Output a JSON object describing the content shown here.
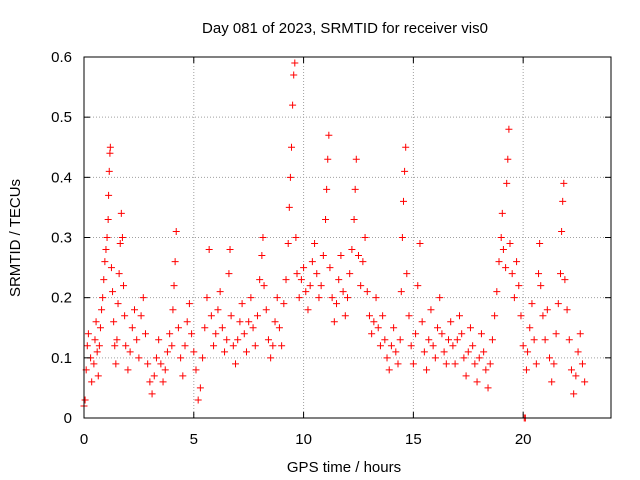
{
  "chart_data": {
    "type": "scatter",
    "title": "Day 081 of 2023, SRMTID for receiver vis0",
    "xlabel": "GPS time / hours",
    "ylabel": "SRMTID / TECUs",
    "xlim": [
      0,
      24
    ],
    "ylim": [
      0,
      0.6
    ],
    "xticks": [
      0,
      5,
      10,
      15,
      20
    ],
    "yticks": [
      0,
      0.1,
      0.2,
      0.3,
      0.4,
      0.5,
      0.6
    ],
    "xtick_labels": [
      "0",
      "5",
      "10",
      "15",
      "20"
    ],
    "ytick_labels": [
      "0",
      "0.1",
      "0.2",
      "0.3",
      "0.4",
      "0.5",
      "0.6"
    ],
    "grid": true,
    "marker": "+",
    "color": "#ff0000",
    "series": [
      {
        "name": "vis0",
        "points": [
          [
            0.0,
            0.02
          ],
          [
            0.05,
            0.03
          ],
          [
            0.1,
            0.08
          ],
          [
            0.15,
            0.12
          ],
          [
            0.2,
            0.14
          ],
          [
            0.3,
            0.1
          ],
          [
            0.35,
            0.06
          ],
          [
            0.45,
            0.09
          ],
          [
            0.5,
            0.13
          ],
          [
            0.55,
            0.16
          ],
          [
            0.6,
            0.11
          ],
          [
            0.65,
            0.07
          ],
          [
            0.7,
            0.12
          ],
          [
            0.75,
            0.15
          ],
          [
            0.8,
            0.18
          ],
          [
            0.85,
            0.2
          ],
          [
            0.9,
            0.23
          ],
          [
            0.95,
            0.26
          ],
          [
            1.0,
            0.28
          ],
          [
            1.05,
            0.3
          ],
          [
            1.1,
            0.33
          ],
          [
            1.12,
            0.37
          ],
          [
            1.15,
            0.41
          ],
          [
            1.18,
            0.44
          ],
          [
            1.2,
            0.45
          ],
          [
            1.25,
            0.25
          ],
          [
            1.3,
            0.21
          ],
          [
            1.35,
            0.16
          ],
          [
            1.4,
            0.12
          ],
          [
            1.45,
            0.09
          ],
          [
            1.5,
            0.13
          ],
          [
            1.55,
            0.19
          ],
          [
            1.6,
            0.24
          ],
          [
            1.65,
            0.29
          ],
          [
            1.7,
            0.34
          ],
          [
            1.75,
            0.3
          ],
          [
            1.8,
            0.22
          ],
          [
            1.85,
            0.17
          ],
          [
            1.9,
            0.12
          ],
          [
            2.0,
            0.08
          ],
          [
            2.1,
            0.11
          ],
          [
            2.2,
            0.15
          ],
          [
            2.3,
            0.18
          ],
          [
            2.4,
            0.13
          ],
          [
            2.5,
            0.1
          ],
          [
            2.6,
            0.17
          ],
          [
            2.7,
            0.2
          ],
          [
            2.8,
            0.14
          ],
          [
            2.9,
            0.09
          ],
          [
            3.0,
            0.06
          ],
          [
            3.1,
            0.04
          ],
          [
            3.2,
            0.07
          ],
          [
            3.3,
            0.1
          ],
          [
            3.4,
            0.13
          ],
          [
            3.5,
            0.09
          ],
          [
            3.6,
            0.06
          ],
          [
            3.7,
            0.08
          ],
          [
            3.8,
            0.11
          ],
          [
            3.9,
            0.14
          ],
          [
            4.0,
            0.12
          ],
          [
            4.05,
            0.18
          ],
          [
            4.1,
            0.22
          ],
          [
            4.15,
            0.26
          ],
          [
            4.2,
            0.31
          ],
          [
            4.3,
            0.15
          ],
          [
            4.4,
            0.1
          ],
          [
            4.5,
            0.07
          ],
          [
            4.6,
            0.12
          ],
          [
            4.7,
            0.16
          ],
          [
            4.8,
            0.19
          ],
          [
            4.9,
            0.14
          ],
          [
            5.0,
            0.11
          ],
          [
            5.1,
            0.08
          ],
          [
            5.2,
            0.03
          ],
          [
            5.3,
            0.05
          ],
          [
            5.4,
            0.1
          ],
          [
            5.5,
            0.15
          ],
          [
            5.6,
            0.2
          ],
          [
            5.7,
            0.28
          ],
          [
            5.8,
            0.17
          ],
          [
            5.9,
            0.12
          ],
          [
            6.0,
            0.14
          ],
          [
            6.1,
            0.18
          ],
          [
            6.2,
            0.21
          ],
          [
            6.3,
            0.15
          ],
          [
            6.4,
            0.11
          ],
          [
            6.5,
            0.13
          ],
          [
            6.6,
            0.24
          ],
          [
            6.65,
            0.28
          ],
          [
            6.7,
            0.17
          ],
          [
            6.8,
            0.12
          ],
          [
            6.9,
            0.09
          ],
          [
            7.0,
            0.13
          ],
          [
            7.1,
            0.16
          ],
          [
            7.2,
            0.19
          ],
          [
            7.3,
            0.14
          ],
          [
            7.4,
            0.11
          ],
          [
            7.5,
            0.16
          ],
          [
            7.6,
            0.2
          ],
          [
            7.7,
            0.15
          ],
          [
            7.8,
            0.12
          ],
          [
            7.9,
            0.17
          ],
          [
            8.0,
            0.23
          ],
          [
            8.1,
            0.27
          ],
          [
            8.15,
            0.3
          ],
          [
            8.2,
            0.22
          ],
          [
            8.3,
            0.18
          ],
          [
            8.4,
            0.13
          ],
          [
            8.5,
            0.1
          ],
          [
            8.6,
            0.12
          ],
          [
            8.7,
            0.16
          ],
          [
            8.8,
            0.2
          ],
          [
            8.9,
            0.15
          ],
          [
            9.0,
            0.12
          ],
          [
            9.1,
            0.19
          ],
          [
            9.2,
            0.23
          ],
          [
            9.3,
            0.29
          ],
          [
            9.35,
            0.35
          ],
          [
            9.4,
            0.4
          ],
          [
            9.45,
            0.45
          ],
          [
            9.5,
            0.52
          ],
          [
            9.55,
            0.57
          ],
          [
            9.6,
            0.59
          ],
          [
            9.65,
            0.3
          ],
          [
            9.7,
            0.24
          ],
          [
            9.8,
            0.2
          ],
          [
            9.9,
            0.23
          ],
          [
            10.0,
            0.25
          ],
          [
            10.1,
            0.21
          ],
          [
            10.2,
            0.18
          ],
          [
            10.3,
            0.22
          ],
          [
            10.4,
            0.26
          ],
          [
            10.5,
            0.29
          ],
          [
            10.6,
            0.24
          ],
          [
            10.7,
            0.2
          ],
          [
            10.8,
            0.22
          ],
          [
            10.9,
            0.27
          ],
          [
            11.0,
            0.33
          ],
          [
            11.05,
            0.38
          ],
          [
            11.1,
            0.43
          ],
          [
            11.15,
            0.47
          ],
          [
            11.2,
            0.25
          ],
          [
            11.3,
            0.2
          ],
          [
            11.4,
            0.16
          ],
          [
            11.5,
            0.19
          ],
          [
            11.6,
            0.23
          ],
          [
            11.7,
            0.27
          ],
          [
            11.8,
            0.21
          ],
          [
            11.9,
            0.17
          ],
          [
            12.0,
            0.2
          ],
          [
            12.1,
            0.24
          ],
          [
            12.2,
            0.28
          ],
          [
            12.3,
            0.33
          ],
          [
            12.35,
            0.38
          ],
          [
            12.4,
            0.43
          ],
          [
            12.5,
            0.27
          ],
          [
            12.6,
            0.22
          ],
          [
            12.7,
            0.26
          ],
          [
            12.8,
            0.3
          ],
          [
            12.9,
            0.21
          ],
          [
            13.0,
            0.17
          ],
          [
            13.1,
            0.14
          ],
          [
            13.2,
            0.16
          ],
          [
            13.3,
            0.2
          ],
          [
            13.4,
            0.15
          ],
          [
            13.5,
            0.12
          ],
          [
            13.6,
            0.17
          ],
          [
            13.7,
            0.13
          ],
          [
            13.8,
            0.1
          ],
          [
            13.9,
            0.08
          ],
          [
            14.0,
            0.12
          ],
          [
            14.1,
            0.15
          ],
          [
            14.2,
            0.11
          ],
          [
            14.3,
            0.09
          ],
          [
            14.4,
            0.13
          ],
          [
            14.45,
            0.21
          ],
          [
            14.5,
            0.3
          ],
          [
            14.55,
            0.36
          ],
          [
            14.6,
            0.41
          ],
          [
            14.65,
            0.45
          ],
          [
            14.7,
            0.24
          ],
          [
            14.8,
            0.17
          ],
          [
            14.9,
            0.12
          ],
          [
            15.0,
            0.09
          ],
          [
            15.1,
            0.14
          ],
          [
            15.2,
            0.22
          ],
          [
            15.3,
            0.29
          ],
          [
            15.4,
            0.16
          ],
          [
            15.5,
            0.11
          ],
          [
            15.6,
            0.08
          ],
          [
            15.7,
            0.13
          ],
          [
            15.8,
            0.18
          ],
          [
            15.9,
            0.12
          ],
          [
            16.0,
            0.1
          ],
          [
            16.1,
            0.15
          ],
          [
            16.2,
            0.2
          ],
          [
            16.3,
            0.14
          ],
          [
            16.4,
            0.11
          ],
          [
            16.5,
            0.09
          ],
          [
            16.6,
            0.13
          ],
          [
            16.7,
            0.16
          ],
          [
            16.8,
            0.12
          ],
          [
            16.9,
            0.09
          ],
          [
            17.0,
            0.13
          ],
          [
            17.1,
            0.17
          ],
          [
            17.2,
            0.14
          ],
          [
            17.3,
            0.1
          ],
          [
            17.4,
            0.07
          ],
          [
            17.5,
            0.11
          ],
          [
            17.6,
            0.15
          ],
          [
            17.7,
            0.12
          ],
          [
            17.8,
            0.09
          ],
          [
            17.9,
            0.06
          ],
          [
            18.0,
            0.1
          ],
          [
            18.1,
            0.14
          ],
          [
            18.2,
            0.11
          ],
          [
            18.3,
            0.08
          ],
          [
            18.4,
            0.05
          ],
          [
            18.5,
            0.09
          ],
          [
            18.6,
            0.13
          ],
          [
            18.7,
            0.17
          ],
          [
            18.8,
            0.21
          ],
          [
            18.9,
            0.26
          ],
          [
            19.0,
            0.3
          ],
          [
            19.05,
            0.34
          ],
          [
            19.1,
            0.28
          ],
          [
            19.2,
            0.25
          ],
          [
            19.25,
            0.39
          ],
          [
            19.3,
            0.43
          ],
          [
            19.35,
            0.48
          ],
          [
            19.4,
            0.29
          ],
          [
            19.5,
            0.24
          ],
          [
            19.6,
            0.2
          ],
          [
            19.7,
            0.26
          ],
          [
            19.8,
            0.22
          ],
          [
            19.9,
            0.17
          ],
          [
            20.0,
            0.12
          ],
          [
            20.05,
            0.0
          ],
          [
            20.1,
            0.0
          ],
          [
            20.15,
            0.08
          ],
          [
            20.2,
            0.11
          ],
          [
            20.3,
            0.15
          ],
          [
            20.4,
            0.19
          ],
          [
            20.5,
            0.13
          ],
          [
            20.6,
            0.09
          ],
          [
            20.7,
            0.24
          ],
          [
            20.75,
            0.29
          ],
          [
            20.8,
            0.22
          ],
          [
            20.9,
            0.17
          ],
          [
            21.0,
            0.13
          ],
          [
            21.1,
            0.18
          ],
          [
            21.2,
            0.1
          ],
          [
            21.3,
            0.06
          ],
          [
            21.4,
            0.09
          ],
          [
            21.5,
            0.14
          ],
          [
            21.6,
            0.19
          ],
          [
            21.7,
            0.24
          ],
          [
            21.75,
            0.31
          ],
          [
            21.8,
            0.36
          ],
          [
            21.85,
            0.39
          ],
          [
            21.9,
            0.23
          ],
          [
            22.0,
            0.18
          ],
          [
            22.1,
            0.13
          ],
          [
            22.2,
            0.08
          ],
          [
            22.3,
            0.04
          ],
          [
            22.4,
            0.07
          ],
          [
            22.5,
            0.11
          ],
          [
            22.6,
            0.14
          ],
          [
            22.7,
            0.09
          ],
          [
            22.8,
            0.06
          ]
        ]
      }
    ]
  }
}
